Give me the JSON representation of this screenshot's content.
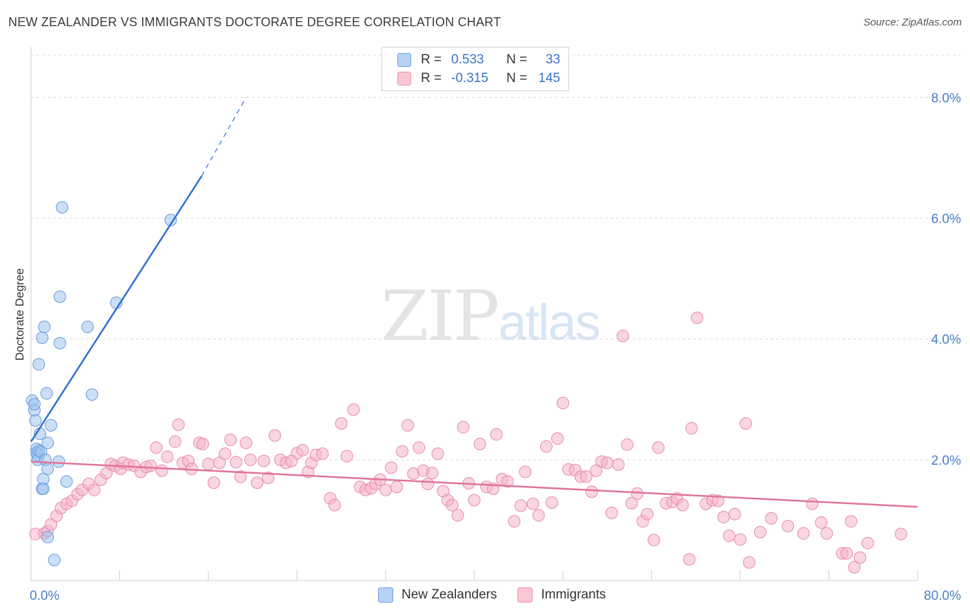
{
  "title": "NEW ZEALANDER VS IMMIGRANTS DOCTORATE DEGREE CORRELATION CHART",
  "source": "Source: ZipAtlas.com",
  "watermark": {
    "zip": "ZIP",
    "atlas": "atlas"
  },
  "legend": {
    "rows": [
      {
        "r_label": "R =",
        "r_value": "0.533",
        "n_label": "N =",
        "n_value": "33",
        "color": "#b7d2f4",
        "border": "#6fa0e0"
      },
      {
        "r_label": "R =",
        "r_value": "-0.315",
        "n_label": "N =",
        "n_value": "145",
        "color": "#f9c6d4",
        "border": "#e893ad"
      }
    ]
  },
  "bottom_legend": [
    {
      "label": "New Zealanders",
      "color": "#b7d2f4",
      "border": "#6fa0e0"
    },
    {
      "label": "Immigrants",
      "color": "#f9c6d4",
      "border": "#e893ad"
    }
  ],
  "chart_data": {
    "type": "scatter",
    "title": "NEW ZEALANDER VS IMMIGRANTS DOCTORATE DEGREE CORRELATION CHART",
    "xlabel": "",
    "ylabel": "Doctorate Degree",
    "xlim": [
      0,
      80
    ],
    "ylim": [
      0,
      8.7
    ],
    "x_tick_labels": [
      "0.0%",
      "80.0%"
    ],
    "y_ticks": [
      2,
      4,
      6,
      8
    ],
    "y_tick_labels": [
      "2.0%",
      "4.0%",
      "6.0%",
      "8.0%"
    ],
    "grid": true,
    "series": [
      {
        "name": "New Zealanders",
        "color": "#9fc2ee",
        "stroke": "#6a9bdc",
        "trend": {
          "x0": 0,
          "y0": 2.3,
          "x1": 15.4,
          "y1": 6.7,
          "dash_to_x": 19.4,
          "dash_to_y": 8.0,
          "color": "#2f6fcf"
        },
        "points": [
          [
            0.1,
            2.98
          ],
          [
            0.3,
            2.82
          ],
          [
            0.3,
            2.92
          ],
          [
            0.4,
            2.65
          ],
          [
            0.5,
            2.18
          ],
          [
            0.5,
            2.12
          ],
          [
            0.6,
            2.08
          ],
          [
            0.6,
            2.0
          ],
          [
            0.7,
            2.15
          ],
          [
            0.7,
            3.58
          ],
          [
            0.8,
            2.43
          ],
          [
            0.9,
            2.13
          ],
          [
            1.0,
            4.02
          ],
          [
            1.0,
            1.52
          ],
          [
            1.1,
            1.68
          ],
          [
            1.1,
            1.52
          ],
          [
            1.2,
            4.2
          ],
          [
            1.3,
            2.0
          ],
          [
            1.4,
            3.1
          ],
          [
            1.5,
            1.85
          ],
          [
            1.5,
            2.28
          ],
          [
            1.5,
            0.72
          ],
          [
            1.8,
            2.57
          ],
          [
            2.1,
            0.34
          ],
          [
            2.5,
            1.97
          ],
          [
            2.6,
            4.7
          ],
          [
            2.6,
            3.93
          ],
          [
            2.8,
            6.18
          ],
          [
            3.2,
            1.64
          ],
          [
            5.1,
            4.2
          ],
          [
            5.5,
            3.08
          ],
          [
            7.7,
            4.6
          ],
          [
            12.6,
            5.97
          ]
        ]
      },
      {
        "name": "Immigrants",
        "color": "#f6b4c8",
        "stroke": "#e68aa8",
        "trend": {
          "x0": 0,
          "y0": 1.97,
          "x1": 80,
          "y1": 1.22,
          "color": "#e0739a"
        },
        "points": [
          [
            0.4,
            0.77
          ],
          [
            1.2,
            0.78
          ],
          [
            1.5,
            0.82
          ],
          [
            1.8,
            0.93
          ],
          [
            2.3,
            1.07
          ],
          [
            2.7,
            1.2
          ],
          [
            3.2,
            1.27
          ],
          [
            3.7,
            1.32
          ],
          [
            4.2,
            1.43
          ],
          [
            4.6,
            1.5
          ],
          [
            5.2,
            1.6
          ],
          [
            5.7,
            1.5
          ],
          [
            6.3,
            1.67
          ],
          [
            6.8,
            1.78
          ],
          [
            7.2,
            1.93
          ],
          [
            7.6,
            1.9
          ],
          [
            8.1,
            1.85
          ],
          [
            8.3,
            1.95
          ],
          [
            8.8,
            1.92
          ],
          [
            9.3,
            1.9
          ],
          [
            9.9,
            1.8
          ],
          [
            10.4,
            1.88
          ],
          [
            10.8,
            1.9
          ],
          [
            11.3,
            2.2
          ],
          [
            11.8,
            1.82
          ],
          [
            12.3,
            2.05
          ],
          [
            13.0,
            2.3
          ],
          [
            13.3,
            2.58
          ],
          [
            13.7,
            1.95
          ],
          [
            14.2,
            1.98
          ],
          [
            14.5,
            1.85
          ],
          [
            15.2,
            2.28
          ],
          [
            15.5,
            2.26
          ],
          [
            16.0,
            1.93
          ],
          [
            16.5,
            1.62
          ],
          [
            17.0,
            1.95
          ],
          [
            17.5,
            2.1
          ],
          [
            18.0,
            2.33
          ],
          [
            18.5,
            1.96
          ],
          [
            18.9,
            1.72
          ],
          [
            19.4,
            2.28
          ],
          [
            19.8,
            2.0
          ],
          [
            20.4,
            1.62
          ],
          [
            21.0,
            1.98
          ],
          [
            21.4,
            1.7
          ],
          [
            22.0,
            2.4
          ],
          [
            22.5,
            2.0
          ],
          [
            23.0,
            1.95
          ],
          [
            23.5,
            1.98
          ],
          [
            24.0,
            2.11
          ],
          [
            24.5,
            2.16
          ],
          [
            25.0,
            1.8
          ],
          [
            25.3,
            1.95
          ],
          [
            25.7,
            2.08
          ],
          [
            26.3,
            2.1
          ],
          [
            27.0,
            1.36
          ],
          [
            27.4,
            1.25
          ],
          [
            28.0,
            2.6
          ],
          [
            28.5,
            2.06
          ],
          [
            29.1,
            2.83
          ],
          [
            29.7,
            1.55
          ],
          [
            30.2,
            1.5
          ],
          [
            30.7,
            1.53
          ],
          [
            31.1,
            1.6
          ],
          [
            31.5,
            1.67
          ],
          [
            32.0,
            1.5
          ],
          [
            32.5,
            1.87
          ],
          [
            33.0,
            1.55
          ],
          [
            33.5,
            2.14
          ],
          [
            34.0,
            2.57
          ],
          [
            34.5,
            1.77
          ],
          [
            35.0,
            2.2
          ],
          [
            35.4,
            1.82
          ],
          [
            35.8,
            1.6
          ],
          [
            36.2,
            1.78
          ],
          [
            36.7,
            2.1
          ],
          [
            37.2,
            1.48
          ],
          [
            37.6,
            1.33
          ],
          [
            38.0,
            1.25
          ],
          [
            38.5,
            1.08
          ],
          [
            39.0,
            2.54
          ],
          [
            39.5,
            1.61
          ],
          [
            40.0,
            1.33
          ],
          [
            40.5,
            2.26
          ],
          [
            41.1,
            1.55
          ],
          [
            41.7,
            1.52
          ],
          [
            42.0,
            2.42
          ],
          [
            42.5,
            1.68
          ],
          [
            43.0,
            1.64
          ],
          [
            43.6,
            0.98
          ],
          [
            44.2,
            1.24
          ],
          [
            44.6,
            1.8
          ],
          [
            45.3,
            1.27
          ],
          [
            45.8,
            1.08
          ],
          [
            46.5,
            2.22
          ],
          [
            47.0,
            1.29
          ],
          [
            47.5,
            2.35
          ],
          [
            48.0,
            2.94
          ],
          [
            48.5,
            1.84
          ],
          [
            49.1,
            1.83
          ],
          [
            49.6,
            1.72
          ],
          [
            50.1,
            1.72
          ],
          [
            50.6,
            1.47
          ],
          [
            51.0,
            1.82
          ],
          [
            51.5,
            1.97
          ],
          [
            52.0,
            1.95
          ],
          [
            52.4,
            1.12
          ],
          [
            53.0,
            1.92
          ],
          [
            53.4,
            4.05
          ],
          [
            53.8,
            2.25
          ],
          [
            54.2,
            1.28
          ],
          [
            54.7,
            1.44
          ],
          [
            55.2,
            0.98
          ],
          [
            55.6,
            1.1
          ],
          [
            56.2,
            0.67
          ],
          [
            56.6,
            2.2
          ],
          [
            57.3,
            1.28
          ],
          [
            57.9,
            1.3
          ],
          [
            58.3,
            1.36
          ],
          [
            58.8,
            1.25
          ],
          [
            59.4,
            0.35
          ],
          [
            59.6,
            2.52
          ],
          [
            60.1,
            4.35
          ],
          [
            60.9,
            1.27
          ],
          [
            61.5,
            1.33
          ],
          [
            62.0,
            1.32
          ],
          [
            62.5,
            1.05
          ],
          [
            63.0,
            0.74
          ],
          [
            63.5,
            1.1
          ],
          [
            64.0,
            0.68
          ],
          [
            64.5,
            2.6
          ],
          [
            64.8,
            0.3
          ],
          [
            65.8,
            0.8
          ],
          [
            66.8,
            1.03
          ],
          [
            68.3,
            0.9
          ],
          [
            69.7,
            0.78
          ],
          [
            70.5,
            1.27
          ],
          [
            71.3,
            0.96
          ],
          [
            71.8,
            0.78
          ],
          [
            73.2,
            0.45
          ],
          [
            73.6,
            0.45
          ],
          [
            74.0,
            0.98
          ],
          [
            74.3,
            0.22
          ],
          [
            74.8,
            0.38
          ],
          [
            75.5,
            0.62
          ],
          [
            78.5,
            0.77
          ]
        ]
      }
    ]
  }
}
